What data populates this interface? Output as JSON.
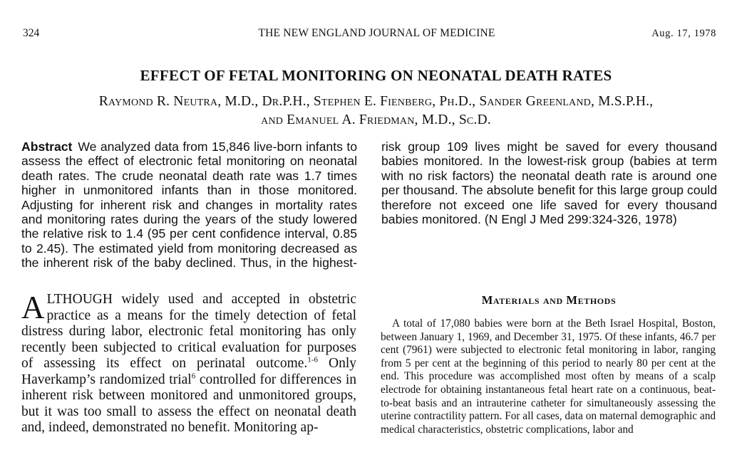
{
  "running_head": {
    "page_number": "324",
    "journal": "THE NEW ENGLAND JOURNAL OF MEDICINE",
    "date": "Aug. 17, 1978"
  },
  "article": {
    "title": "EFFECT OF FETAL MONITORING ON NEONATAL DEATH RATES",
    "authors_line1": "Raymond R. Neutra, M.D., Dr.P.H., Stephen E. Fienberg, Ph.D., Sander Greenland, M.S.P.H.,",
    "authors_line2": "and Emanuel A. Friedman, M.D., Sc.D."
  },
  "abstract": {
    "label": "Abstract",
    "text": "We analyzed data from 15,846 live-born infants to assess the effect of electronic fetal monitoring on neonatal death rates. The crude neonatal death rate was 1.7 times higher in unmonitored infants than in those monitored. Adjusting for inherent risk and changes in mortality rates and monitoring rates during the years of the study lowered the relative risk to 1.4 (95 per cent confidence interval, 0.85 to 2.45). The estimated yield from monitoring decreased as the inherent risk of the baby declined. Thus, in the highest-risk group 109 lives might be saved for every thousand babies monitored. In the lowest-risk group (babies at term with no risk factors) the neonatal death rate is around one per thousand. The absolute benefit for this large group could therefore not exceed one life saved for every thousand babies monitored. (N Engl J Med 299:324-326, 1978)"
  },
  "introduction": {
    "drop_cap": "A",
    "text_before_ref1": "LTHOUGH widely used and accepted in obstetric practice as a means for the timely detection of fetal distress during labor, electronic fetal monitoring has only recently been subjected to critical evaluation for purposes of assessing its effect on perinatal outcome.",
    "ref1": "1-6",
    "text_after_ref1": " Only Haverkamp’s randomized trial",
    "ref2": "6",
    "text_after_ref2": " controlled for differences in inherent risk between monitored and unmonitored groups, but it was too small to assess the effect on neonatal death and, indeed, demonstrated no benefit. Monitoring ap-"
  },
  "methods": {
    "heading": "Materials and Methods",
    "text": "A total of 17,080 babies were born at the Beth Israel Hospital, Boston, between January 1, 1969, and December 31, 1975. Of these infants, 46.7 per cent (7961) were subjected to electronic fetal monitoring in labor, ranging from 5 per cent at the beginning of this period to nearly 80 per cent at the end. This procedure was accomplished most often by means of a scalp electrode for obtaining instantaneous fetal heart rate on a continuous, beat-to-beat basis and an intrauterine catheter for simultaneously assessing the uterine contractility pattern. For all cases, data on maternal demographic and medical characteristics, obstetric complications, labor and"
  }
}
